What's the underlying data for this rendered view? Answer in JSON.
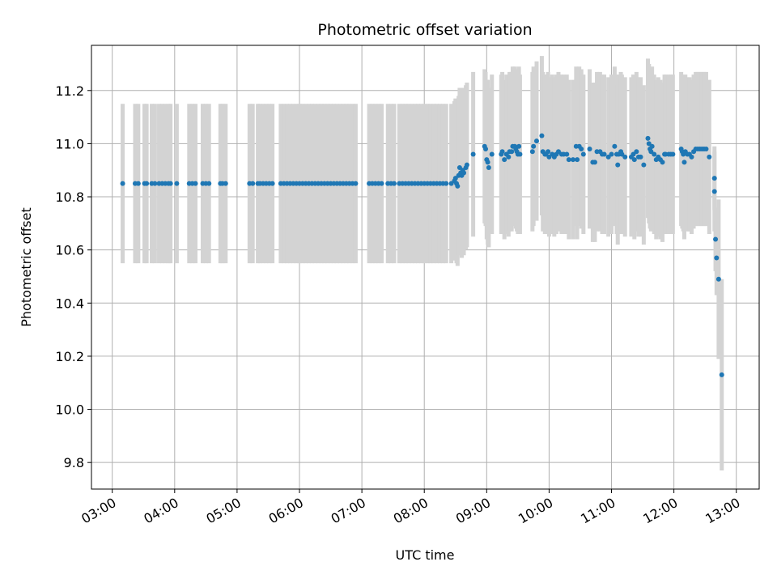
{
  "chart_data": {
    "type": "scatter",
    "title": "Photometric offset variation",
    "xlabel": "UTC time",
    "ylabel": "Photometric offset",
    "x_ticks": [
      "03:00",
      "04:00",
      "05:00",
      "06:00",
      "07:00",
      "08:00",
      "09:00",
      "10:00",
      "11:00",
      "12:00",
      "13:00"
    ],
    "y_ticks": [
      "9.8",
      "10.0",
      "10.2",
      "10.4",
      "10.6",
      "10.8",
      "11.0",
      "11.2"
    ],
    "xlim": [
      "02:40",
      "13:22"
    ],
    "ylim": [
      9.7,
      11.37
    ],
    "grid": true,
    "colors": {
      "point": "#1f77b4",
      "errorbar": "#d3d3d3",
      "grid": "#b0b0b0"
    },
    "series": [
      {
        "points": [
          {
            "x": "03:10",
            "y": 10.85,
            "err": 0.3
          },
          {
            "x": "03:22",
            "y": 10.85,
            "err": 0.3
          },
          {
            "x": "03:25",
            "y": 10.85,
            "err": 0.3
          },
          {
            "x": "03:31",
            "y": 10.85,
            "err": 0.3
          },
          {
            "x": "03:33",
            "y": 10.85,
            "err": 0.3
          },
          {
            "x": "03:38",
            "y": 10.85,
            "err": 0.3
          },
          {
            "x": "03:41",
            "y": 10.85,
            "err": 0.3
          },
          {
            "x": "03:45",
            "y": 10.85,
            "err": 0.3
          },
          {
            "x": "03:48",
            "y": 10.85,
            "err": 0.3
          },
          {
            "x": "03:51",
            "y": 10.85,
            "err": 0.3
          },
          {
            "x": "03:54",
            "y": 10.85,
            "err": 0.3
          },
          {
            "x": "03:56",
            "y": 10.85,
            "err": 0.3
          },
          {
            "x": "04:02",
            "y": 10.85,
            "err": 0.3
          },
          {
            "x": "04:14",
            "y": 10.85,
            "err": 0.3
          },
          {
            "x": "04:17",
            "y": 10.85,
            "err": 0.3
          },
          {
            "x": "04:20",
            "y": 10.85,
            "err": 0.3
          },
          {
            "x": "04:27",
            "y": 10.85,
            "err": 0.3
          },
          {
            "x": "04:30",
            "y": 10.85,
            "err": 0.3
          },
          {
            "x": "04:33",
            "y": 10.85,
            "err": 0.3
          },
          {
            "x": "04:44",
            "y": 10.85,
            "err": 0.3
          },
          {
            "x": "04:46",
            "y": 10.85,
            "err": 0.3
          },
          {
            "x": "04:49",
            "y": 10.85,
            "err": 0.3
          },
          {
            "x": "05:12",
            "y": 10.85,
            "err": 0.3
          },
          {
            "x": "05:15",
            "y": 10.85,
            "err": 0.3
          },
          {
            "x": "05:20",
            "y": 10.85,
            "err": 0.3
          },
          {
            "x": "05:22",
            "y": 10.85,
            "err": 0.3
          },
          {
            "x": "05:25",
            "y": 10.85,
            "err": 0.3
          },
          {
            "x": "05:28",
            "y": 10.85,
            "err": 0.3
          },
          {
            "x": "05:31",
            "y": 10.85,
            "err": 0.3
          },
          {
            "x": "05:34",
            "y": 10.85,
            "err": 0.3
          },
          {
            "x": "05:42",
            "y": 10.85,
            "err": 0.3
          },
          {
            "x": "05:45",
            "y": 10.85,
            "err": 0.3
          },
          {
            "x": "05:48",
            "y": 10.85,
            "err": 0.3
          },
          {
            "x": "05:51",
            "y": 10.85,
            "err": 0.3
          },
          {
            "x": "05:54",
            "y": 10.85,
            "err": 0.3
          },
          {
            "x": "05:57",
            "y": 10.85,
            "err": 0.3
          },
          {
            "x": "06:00",
            "y": 10.85,
            "err": 0.3
          },
          {
            "x": "06:03",
            "y": 10.85,
            "err": 0.3
          },
          {
            "x": "06:06",
            "y": 10.85,
            "err": 0.3
          },
          {
            "x": "06:09",
            "y": 10.85,
            "err": 0.3
          },
          {
            "x": "06:12",
            "y": 10.85,
            "err": 0.3
          },
          {
            "x": "06:15",
            "y": 10.85,
            "err": 0.3
          },
          {
            "x": "06:18",
            "y": 10.85,
            "err": 0.3
          },
          {
            "x": "06:21",
            "y": 10.85,
            "err": 0.3
          },
          {
            "x": "06:24",
            "y": 10.85,
            "err": 0.3
          },
          {
            "x": "06:27",
            "y": 10.85,
            "err": 0.3
          },
          {
            "x": "06:30",
            "y": 10.85,
            "err": 0.3
          },
          {
            "x": "06:33",
            "y": 10.85,
            "err": 0.3
          },
          {
            "x": "06:36",
            "y": 10.85,
            "err": 0.3
          },
          {
            "x": "06:39",
            "y": 10.85,
            "err": 0.3
          },
          {
            "x": "06:42",
            "y": 10.85,
            "err": 0.3
          },
          {
            "x": "06:45",
            "y": 10.85,
            "err": 0.3
          },
          {
            "x": "06:48",
            "y": 10.85,
            "err": 0.3
          },
          {
            "x": "06:51",
            "y": 10.85,
            "err": 0.3
          },
          {
            "x": "06:54",
            "y": 10.85,
            "err": 0.3
          },
          {
            "x": "07:07",
            "y": 10.85,
            "err": 0.3
          },
          {
            "x": "07:10",
            "y": 10.85,
            "err": 0.3
          },
          {
            "x": "07:13",
            "y": 10.85,
            "err": 0.3
          },
          {
            "x": "07:16",
            "y": 10.85,
            "err": 0.3
          },
          {
            "x": "07:19",
            "y": 10.85,
            "err": 0.3
          },
          {
            "x": "07:25",
            "y": 10.85,
            "err": 0.3
          },
          {
            "x": "07:28",
            "y": 10.85,
            "err": 0.3
          },
          {
            "x": "07:31",
            "y": 10.85,
            "err": 0.3
          },
          {
            "x": "07:36",
            "y": 10.85,
            "err": 0.3
          },
          {
            "x": "07:39",
            "y": 10.85,
            "err": 0.3
          },
          {
            "x": "07:42",
            "y": 10.85,
            "err": 0.3
          },
          {
            "x": "07:45",
            "y": 10.85,
            "err": 0.3
          },
          {
            "x": "07:48",
            "y": 10.85,
            "err": 0.3
          },
          {
            "x": "07:51",
            "y": 10.85,
            "err": 0.3
          },
          {
            "x": "07:54",
            "y": 10.85,
            "err": 0.3
          },
          {
            "x": "07:57",
            "y": 10.85,
            "err": 0.3
          },
          {
            "x": "08:00",
            "y": 10.85,
            "err": 0.3
          },
          {
            "x": "08:03",
            "y": 10.85,
            "err": 0.3
          },
          {
            "x": "08:06",
            "y": 10.85,
            "err": 0.3
          },
          {
            "x": "08:09",
            "y": 10.85,
            "err": 0.3
          },
          {
            "x": "08:12",
            "y": 10.85,
            "err": 0.3
          },
          {
            "x": "08:15",
            "y": 10.85,
            "err": 0.3
          },
          {
            "x": "08:18",
            "y": 10.85,
            "err": 0.3
          },
          {
            "x": "08:21",
            "y": 10.85,
            "err": 0.3
          },
          {
            "x": "08:26",
            "y": 10.85,
            "err": 0.3
          },
          {
            "x": "08:29",
            "y": 10.86,
            "err": 0.3
          },
          {
            "x": "08:30",
            "y": 10.87,
            "err": 0.3
          },
          {
            "x": "08:31",
            "y": 10.85,
            "err": 0.3
          },
          {
            "x": "08:32",
            "y": 10.84,
            "err": 0.3
          },
          {
            "x": "08:33",
            "y": 10.88,
            "err": 0.3
          },
          {
            "x": "08:34",
            "y": 10.91,
            "err": 0.3
          },
          {
            "x": "08:35",
            "y": 10.89,
            "err": 0.3
          },
          {
            "x": "08:36",
            "y": 10.88,
            "err": 0.31
          },
          {
            "x": "08:37",
            "y": 10.9,
            "err": 0.31
          },
          {
            "x": "08:38",
            "y": 10.89,
            "err": 0.31
          },
          {
            "x": "08:40",
            "y": 10.91,
            "err": 0.31
          },
          {
            "x": "08:41",
            "y": 10.92,
            "err": 0.31
          },
          {
            "x": "08:47",
            "y": 10.96,
            "err": 0.31
          },
          {
            "x": "08:58",
            "y": 10.99,
            "err": 0.29
          },
          {
            "x": "08:59",
            "y": 10.98,
            "err": 0.29
          },
          {
            "x": "09:00",
            "y": 10.94,
            "err": 0.3
          },
          {
            "x": "09:01",
            "y": 10.93,
            "err": 0.31
          },
          {
            "x": "09:02",
            "y": 10.91,
            "err": 0.3
          },
          {
            "x": "09:05",
            "y": 10.96,
            "err": 0.3
          },
          {
            "x": "09:14",
            "y": 10.96,
            "err": 0.3
          },
          {
            "x": "09:15",
            "y": 10.97,
            "err": 0.3
          },
          {
            "x": "09:17",
            "y": 10.94,
            "err": 0.3
          },
          {
            "x": "09:19",
            "y": 10.96,
            "err": 0.3
          },
          {
            "x": "09:21",
            "y": 10.95,
            "err": 0.3
          },
          {
            "x": "09:22",
            "y": 10.97,
            "err": 0.3
          },
          {
            "x": "09:24",
            "y": 10.97,
            "err": 0.3
          },
          {
            "x": "09:25",
            "y": 10.99,
            "err": 0.3
          },
          {
            "x": "09:27",
            "y": 10.99,
            "err": 0.3
          },
          {
            "x": "09:28",
            "y": 10.98,
            "err": 0.3
          },
          {
            "x": "09:29",
            "y": 10.97,
            "err": 0.3
          },
          {
            "x": "09:30",
            "y": 10.96,
            "err": 0.3
          },
          {
            "x": "09:31",
            "y": 10.99,
            "err": 0.3
          },
          {
            "x": "09:32",
            "y": 10.96,
            "err": 0.3
          },
          {
            "x": "09:44",
            "y": 10.97,
            "err": 0.3
          },
          {
            "x": "09:45",
            "y": 10.99,
            "err": 0.3
          },
          {
            "x": "09:48",
            "y": 11.01,
            "err": 0.3
          },
          {
            "x": "09:53",
            "y": 11.03,
            "err": 0.3
          },
          {
            "x": "09:54",
            "y": 10.97,
            "err": 0.3
          },
          {
            "x": "09:56",
            "y": 10.96,
            "err": 0.3
          },
          {
            "x": "09:57",
            "y": 10.96,
            "err": 0.3
          },
          {
            "x": "09:59",
            "y": 10.97,
            "err": 0.3
          },
          {
            "x": "10:00",
            "y": 10.95,
            "err": 0.3
          },
          {
            "x": "10:03",
            "y": 10.96,
            "err": 0.3
          },
          {
            "x": "10:05",
            "y": 10.95,
            "err": 0.3
          },
          {
            "x": "10:07",
            "y": 10.96,
            "err": 0.3
          },
          {
            "x": "10:09",
            "y": 10.97,
            "err": 0.3
          },
          {
            "x": "10:12",
            "y": 10.96,
            "err": 0.3
          },
          {
            "x": "10:14",
            "y": 10.96,
            "err": 0.3
          },
          {
            "x": "10:17",
            "y": 10.96,
            "err": 0.3
          },
          {
            "x": "10:19",
            "y": 10.94,
            "err": 0.3
          },
          {
            "x": "10:23",
            "y": 10.94,
            "err": 0.3
          },
          {
            "x": "10:26",
            "y": 10.99,
            "err": 0.3
          },
          {
            "x": "10:27",
            "y": 10.94,
            "err": 0.3
          },
          {
            "x": "10:29",
            "y": 10.99,
            "err": 0.3
          },
          {
            "x": "10:31",
            "y": 10.98,
            "err": 0.3
          },
          {
            "x": "10:33",
            "y": 10.96,
            "err": 0.3
          },
          {
            "x": "10:39",
            "y": 10.98,
            "err": 0.3
          },
          {
            "x": "10:42",
            "y": 10.93,
            "err": 0.3
          },
          {
            "x": "10:44",
            "y": 10.93,
            "err": 0.3
          },
          {
            "x": "10:46",
            "y": 10.97,
            "err": 0.3
          },
          {
            "x": "10:49",
            "y": 10.97,
            "err": 0.3
          },
          {
            "x": "10:51",
            "y": 10.96,
            "err": 0.3
          },
          {
            "x": "10:53",
            "y": 10.96,
            "err": 0.3
          },
          {
            "x": "10:57",
            "y": 10.95,
            "err": 0.3
          },
          {
            "x": "11:00",
            "y": 10.96,
            "err": 0.3
          },
          {
            "x": "11:03",
            "y": 10.99,
            "err": 0.3
          },
          {
            "x": "11:05",
            "y": 10.96,
            "err": 0.3
          },
          {
            "x": "11:06",
            "y": 10.92,
            "err": 0.3
          },
          {
            "x": "11:07",
            "y": 10.96,
            "err": 0.3
          },
          {
            "x": "11:09",
            "y": 10.97,
            "err": 0.3
          },
          {
            "x": "11:10",
            "y": 10.96,
            "err": 0.3
          },
          {
            "x": "11:13",
            "y": 10.95,
            "err": 0.3
          },
          {
            "x": "11:19",
            "y": 10.95,
            "err": 0.3
          },
          {
            "x": "11:21",
            "y": 10.96,
            "err": 0.3
          },
          {
            "x": "11:22",
            "y": 10.94,
            "err": 0.3
          },
          {
            "x": "11:24",
            "y": 10.97,
            "err": 0.3
          },
          {
            "x": "11:26",
            "y": 10.95,
            "err": 0.3
          },
          {
            "x": "11:28",
            "y": 10.95,
            "err": 0.3
          },
          {
            "x": "11:31",
            "y": 10.92,
            "err": 0.3
          },
          {
            "x": "11:35",
            "y": 11.02,
            "err": 0.3
          },
          {
            "x": "11:36",
            "y": 11.0,
            "err": 0.3
          },
          {
            "x": "11:37",
            "y": 10.98,
            "err": 0.3
          },
          {
            "x": "11:38",
            "y": 10.97,
            "err": 0.3
          },
          {
            "x": "11:39",
            "y": 10.99,
            "err": 0.3
          },
          {
            "x": "11:41",
            "y": 10.96,
            "err": 0.3
          },
          {
            "x": "11:43",
            "y": 10.94,
            "err": 0.3
          },
          {
            "x": "11:45",
            "y": 10.95,
            "err": 0.3
          },
          {
            "x": "11:47",
            "y": 10.94,
            "err": 0.3
          },
          {
            "x": "11:49",
            "y": 10.93,
            "err": 0.3
          },
          {
            "x": "11:51",
            "y": 10.96,
            "err": 0.3
          },
          {
            "x": "11:52",
            "y": 10.96,
            "err": 0.3
          },
          {
            "x": "11:55",
            "y": 10.96,
            "err": 0.3
          },
          {
            "x": "11:57",
            "y": 10.96,
            "err": 0.3
          },
          {
            "x": "11:59",
            "y": 10.96,
            "err": 0.3
          },
          {
            "x": "12:07",
            "y": 10.98,
            "err": 0.29
          },
          {
            "x": "12:08",
            "y": 10.97,
            "err": 0.29
          },
          {
            "x": "12:09",
            "y": 10.96,
            "err": 0.29
          },
          {
            "x": "12:10",
            "y": 10.93,
            "err": 0.29
          },
          {
            "x": "12:11",
            "y": 10.97,
            "err": 0.29
          },
          {
            "x": "12:13",
            "y": 10.96,
            "err": 0.29
          },
          {
            "x": "12:15",
            "y": 10.96,
            "err": 0.29
          },
          {
            "x": "12:17",
            "y": 10.95,
            "err": 0.29
          },
          {
            "x": "12:19",
            "y": 10.97,
            "err": 0.29
          },
          {
            "x": "12:21",
            "y": 10.98,
            "err": 0.29
          },
          {
            "x": "12:23",
            "y": 10.98,
            "err": 0.29
          },
          {
            "x": "12:25",
            "y": 10.98,
            "err": 0.29
          },
          {
            "x": "12:27",
            "y": 10.98,
            "err": 0.29
          },
          {
            "x": "12:29",
            "y": 10.98,
            "err": 0.29
          },
          {
            "x": "12:31",
            "y": 10.98,
            "err": 0.29
          },
          {
            "x": "12:34",
            "y": 10.95,
            "err": 0.29
          },
          {
            "x": "12:39",
            "y": 10.87,
            "err": 0.12
          },
          {
            "x": "12:39",
            "y": 10.82,
            "err": 0.15
          },
          {
            "x": "12:40",
            "y": 10.64,
            "err": 0.12
          },
          {
            "x": "12:41",
            "y": 10.57,
            "err": 0.14
          },
          {
            "x": "12:43",
            "y": 10.49,
            "err": 0.3
          },
          {
            "x": "12:46",
            "y": 10.13,
            "err": 0.36
          }
        ]
      }
    ]
  }
}
